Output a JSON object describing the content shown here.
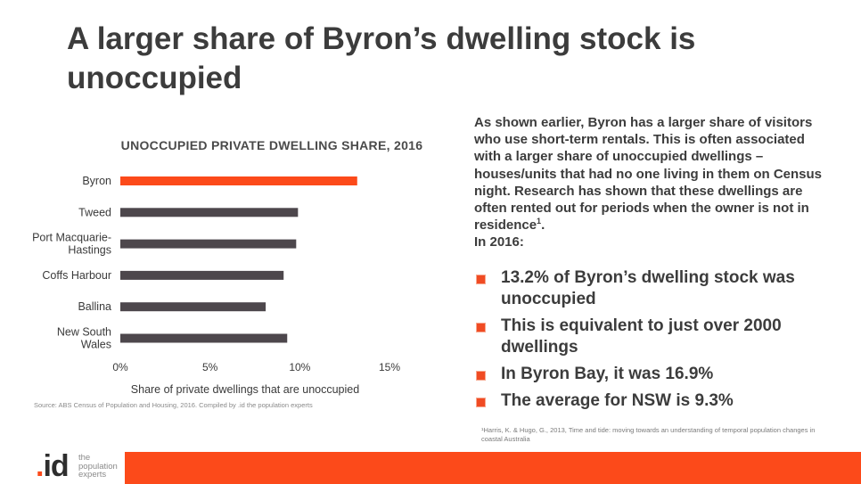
{
  "slide": {
    "title": "A larger share of Byron’s dwelling stock is unoccupied",
    "source": "Source: ABS Census of Population and Housing, 2016. Compiled by .id the population experts",
    "body_text": "As shown earlier, Byron has a larger share of visitors who use short-term rentals. This is often associated with a larger share of unoccupied dwellings – houses/units that had no one living in them on Census night. Research has shown that these dwellings are often rented out for periods when the owner is not in residence",
    "body_footnote_ref": "1",
    "body_period": ".",
    "body_year": "In 2016:",
    "bullets": [
      "13.2% of Byron’s dwelling stock was unoccupied",
      "This is equivalent to just over 2000 dwellings",
      "In Byron Bay, it was 16.9%",
      "The average for NSW is 9.3%"
    ],
    "footnote": "¹Harris, K. & Hugo, G., 2013, Time and tide: moving towards an understanding of temporal population changes in coastal Australia",
    "logo": {
      "mark": ".id",
      "tagline_lines": [
        "the",
        "population",
        "experts"
      ]
    },
    "colors": {
      "accent": "#fc4a1a",
      "highlight_bar": "#fc4a1a",
      "bar": "#4d474c",
      "text": "#3c3c3c"
    }
  },
  "chart_data": {
    "type": "bar",
    "orientation": "horizontal",
    "title": "UNOCCUPIED PRIVATE DWELLING SHARE, 2016",
    "xlabel": "Share of private dwellings that are unoccupied",
    "ylabel": "",
    "categories": [
      "Byron",
      "Tweed",
      "Port Macquarie-Hastings",
      "Coffs Harbour",
      "Ballina",
      "New South Wales"
    ],
    "category_display": [
      [
        "Byron"
      ],
      [
        "Tweed"
      ],
      [
        "Port Macquarie-",
        "Hastings"
      ],
      [
        "Coffs Harbour"
      ],
      [
        "Ballina"
      ],
      [
        "New South",
        "Wales"
      ]
    ],
    "values": [
      13.2,
      9.9,
      9.8,
      9.1,
      8.1,
      9.3
    ],
    "highlight_index": 0,
    "xlim": [
      0,
      15
    ],
    "xticks": [
      0,
      5,
      10,
      15
    ],
    "xtick_labels": [
      "0%",
      "5%",
      "10%",
      "15%"
    ],
    "grid": false,
    "legend": "none"
  }
}
